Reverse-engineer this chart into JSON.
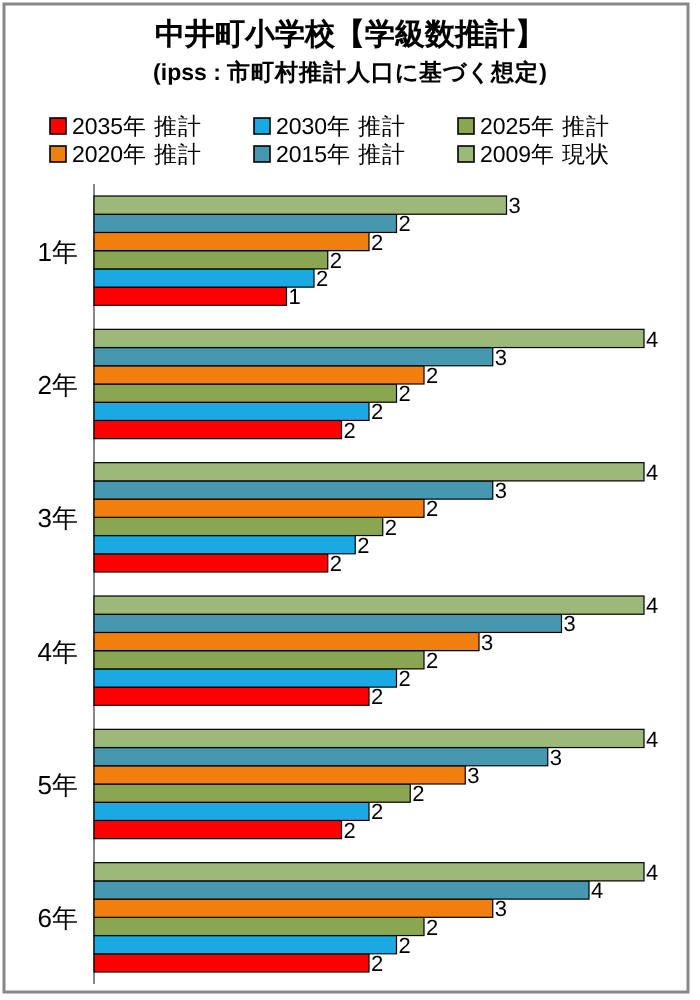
{
  "chart_data": {
    "type": "bar",
    "orientation": "horizontal",
    "title": "中井町小学校【学級数推計】",
    "subtitle": "(ipss : 市町村推計人口に基づく想定)",
    "legend": "top",
    "categories": [
      "1年",
      "2年",
      "3年",
      "4年",
      "5年",
      "6年"
    ],
    "series": [
      {
        "name": "2035年 推計",
        "color": "#ff0000",
        "values": [
          1.4,
          1.8,
          1.7,
          2.0,
          1.8,
          2.0
        ],
        "value_labels": [
          "1",
          "2",
          "2",
          "2",
          "2",
          "2"
        ]
      },
      {
        "name": "2030年 推計",
        "color": "#1aa9e0",
        "values": [
          1.6,
          2.0,
          1.9,
          2.2,
          2.0,
          2.2
        ],
        "value_labels": [
          "2",
          "2",
          "2",
          "2",
          "2",
          "2"
        ]
      },
      {
        "name": "2025年 推計",
        "color": "#8aa650",
        "values": [
          1.7,
          2.2,
          2.1,
          2.4,
          2.3,
          2.4
        ],
        "value_labels": [
          "2",
          "2",
          "2",
          "2",
          "2",
          "2"
        ]
      },
      {
        "name": "2020年 推計",
        "color": "#f07f10",
        "values": [
          2.0,
          2.4,
          2.4,
          2.8,
          2.7,
          2.9
        ],
        "value_labels": [
          "2",
          "2",
          "2",
          "3",
          "3",
          "3"
        ]
      },
      {
        "name": "2015年 推計",
        "color": "#4598b0",
        "values": [
          2.2,
          2.9,
          2.9,
          3.4,
          3.3,
          3.6
        ],
        "value_labels": [
          "2",
          "3",
          "3",
          "3",
          "3",
          "4"
        ]
      },
      {
        "name": "2009年 現状",
        "color": "#9cb97a",
        "values": [
          3,
          4,
          4,
          4,
          4,
          4
        ],
        "value_labels": [
          "3",
          "4",
          "4",
          "4",
          "4",
          "4"
        ]
      }
    ]
  }
}
